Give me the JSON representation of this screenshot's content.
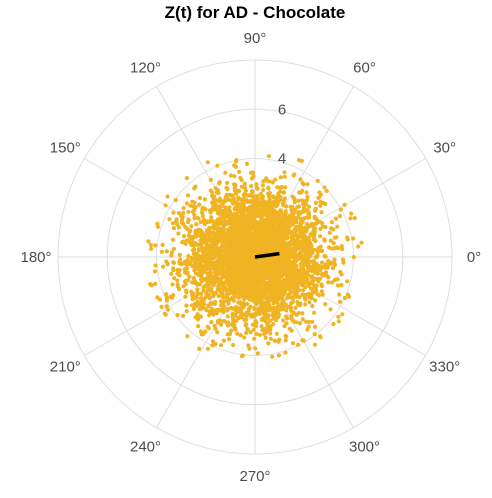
{
  "chart_data": {
    "type": "scatter",
    "subtype": "polar",
    "title": "Z(t) for AD - Chocolate",
    "angular_ticks": [
      "0°",
      "30°",
      "60°",
      "90°",
      "120°",
      "150°",
      "180°",
      "210°",
      "240°",
      "270°",
      "300°",
      "330°"
    ],
    "angular_tick_degrees": [
      0,
      30,
      60,
      90,
      120,
      150,
      180,
      210,
      240,
      270,
      300,
      330
    ],
    "radial_ticks": [
      4,
      6
    ],
    "radial_tick_labels": [
      "4",
      "6"
    ],
    "radial_range": [
      0,
      8
    ],
    "grid": true,
    "point_color": "#f0b323",
    "arrow_color": "#000000",
    "point_cloud": {
      "count": 4000,
      "center": [
        0,
        0
      ],
      "spread_sd": 1.35,
      "max_radius": 4.4,
      "extent_deg": {
        "0": 3.8,
        "90": 4.1,
        "180": 4.2,
        "270": 4.0
      }
    },
    "mean_vector": {
      "angle_deg": 8,
      "length": 1.0
    }
  }
}
